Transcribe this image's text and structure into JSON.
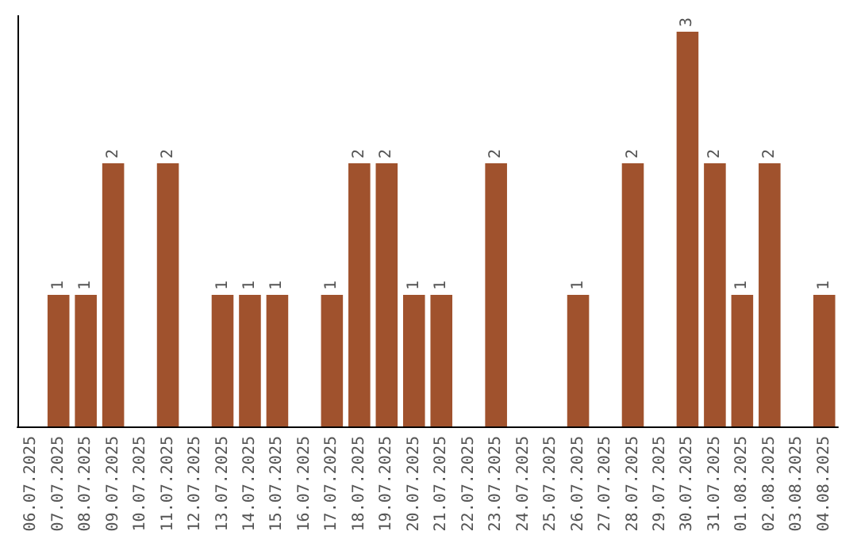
{
  "chart_data": {
    "type": "bar",
    "categories": [
      "06.07.2025",
      "07.07.2025",
      "08.07.2025",
      "09.07.2025",
      "10.07.2025",
      "11.07.2025",
      "12.07.2025",
      "13.07.2025",
      "14.07.2025",
      "15.07.2025",
      "16.07.2025",
      "17.07.2025",
      "18.07.2025",
      "19.07.2025",
      "20.07.2025",
      "21.07.2025",
      "22.07.2025",
      "23.07.2025",
      "24.07.2025",
      "25.07.2025",
      "26.07.2025",
      "27.07.2025",
      "28.07.2025",
      "29.07.2025",
      "30.07.2025",
      "31.07.2025",
      "01.08.2025",
      "02.08.2025",
      "03.08.2025",
      "04.08.2025"
    ],
    "values": [
      0,
      1,
      1,
      2,
      0,
      2,
      0,
      1,
      1,
      1,
      0,
      1,
      2,
      2,
      1,
      1,
      0,
      2,
      0,
      0,
      1,
      0,
      2,
      0,
      3,
      2,
      1,
      2,
      0,
      1
    ],
    "value_labels": [
      null,
      "1",
      "1",
      "2",
      null,
      "2",
      null,
      "1",
      "1",
      "1",
      null,
      "1",
      "2",
      "2",
      "1",
      "1",
      null,
      "2",
      null,
      null,
      "1",
      null,
      "2",
      null,
      "3",
      "2",
      "1",
      "2",
      null,
      "1"
    ],
    "color": "#a0522d",
    "ylim": [
      0,
      3.12
    ],
    "tick_labels": "x",
    "grid": false
  }
}
